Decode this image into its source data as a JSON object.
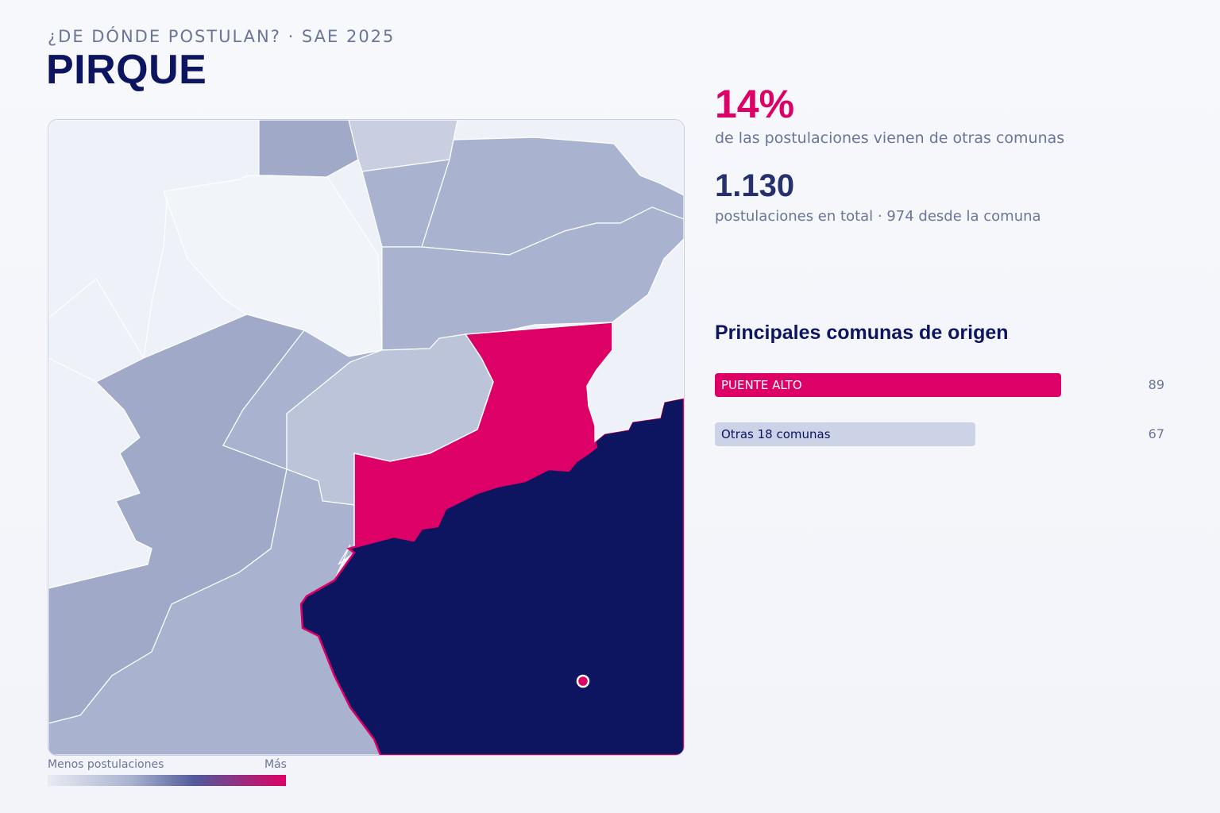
{
  "header": {
    "kicker": "¿DE DÓNDE POSTULAN? · SAE 2025",
    "title": "PIRQUE"
  },
  "stats": {
    "share_value": "14%",
    "share_label": "de las postulaciones vienen de otras comunas",
    "total_value": "1.130",
    "total_label": "postulaciones en total · 974 desde la comuna"
  },
  "origins": {
    "title": "Principales comunas de origen",
    "items": [
      {
        "label": "PUENTE ALTO",
        "value": "89"
      },
      {
        "label": "Otras 18 comunas",
        "value": "67"
      }
    ]
  },
  "legend": {
    "low_label": "Menos postulaciones",
    "high_label": "Más"
  },
  "colors": {
    "accent": "#dd0066",
    "navy": "#0d1460",
    "mid": "#a9b3cf",
    "light": "#eef1f7"
  },
  "icons": {
    "location_marker": "location-marker-icon"
  }
}
